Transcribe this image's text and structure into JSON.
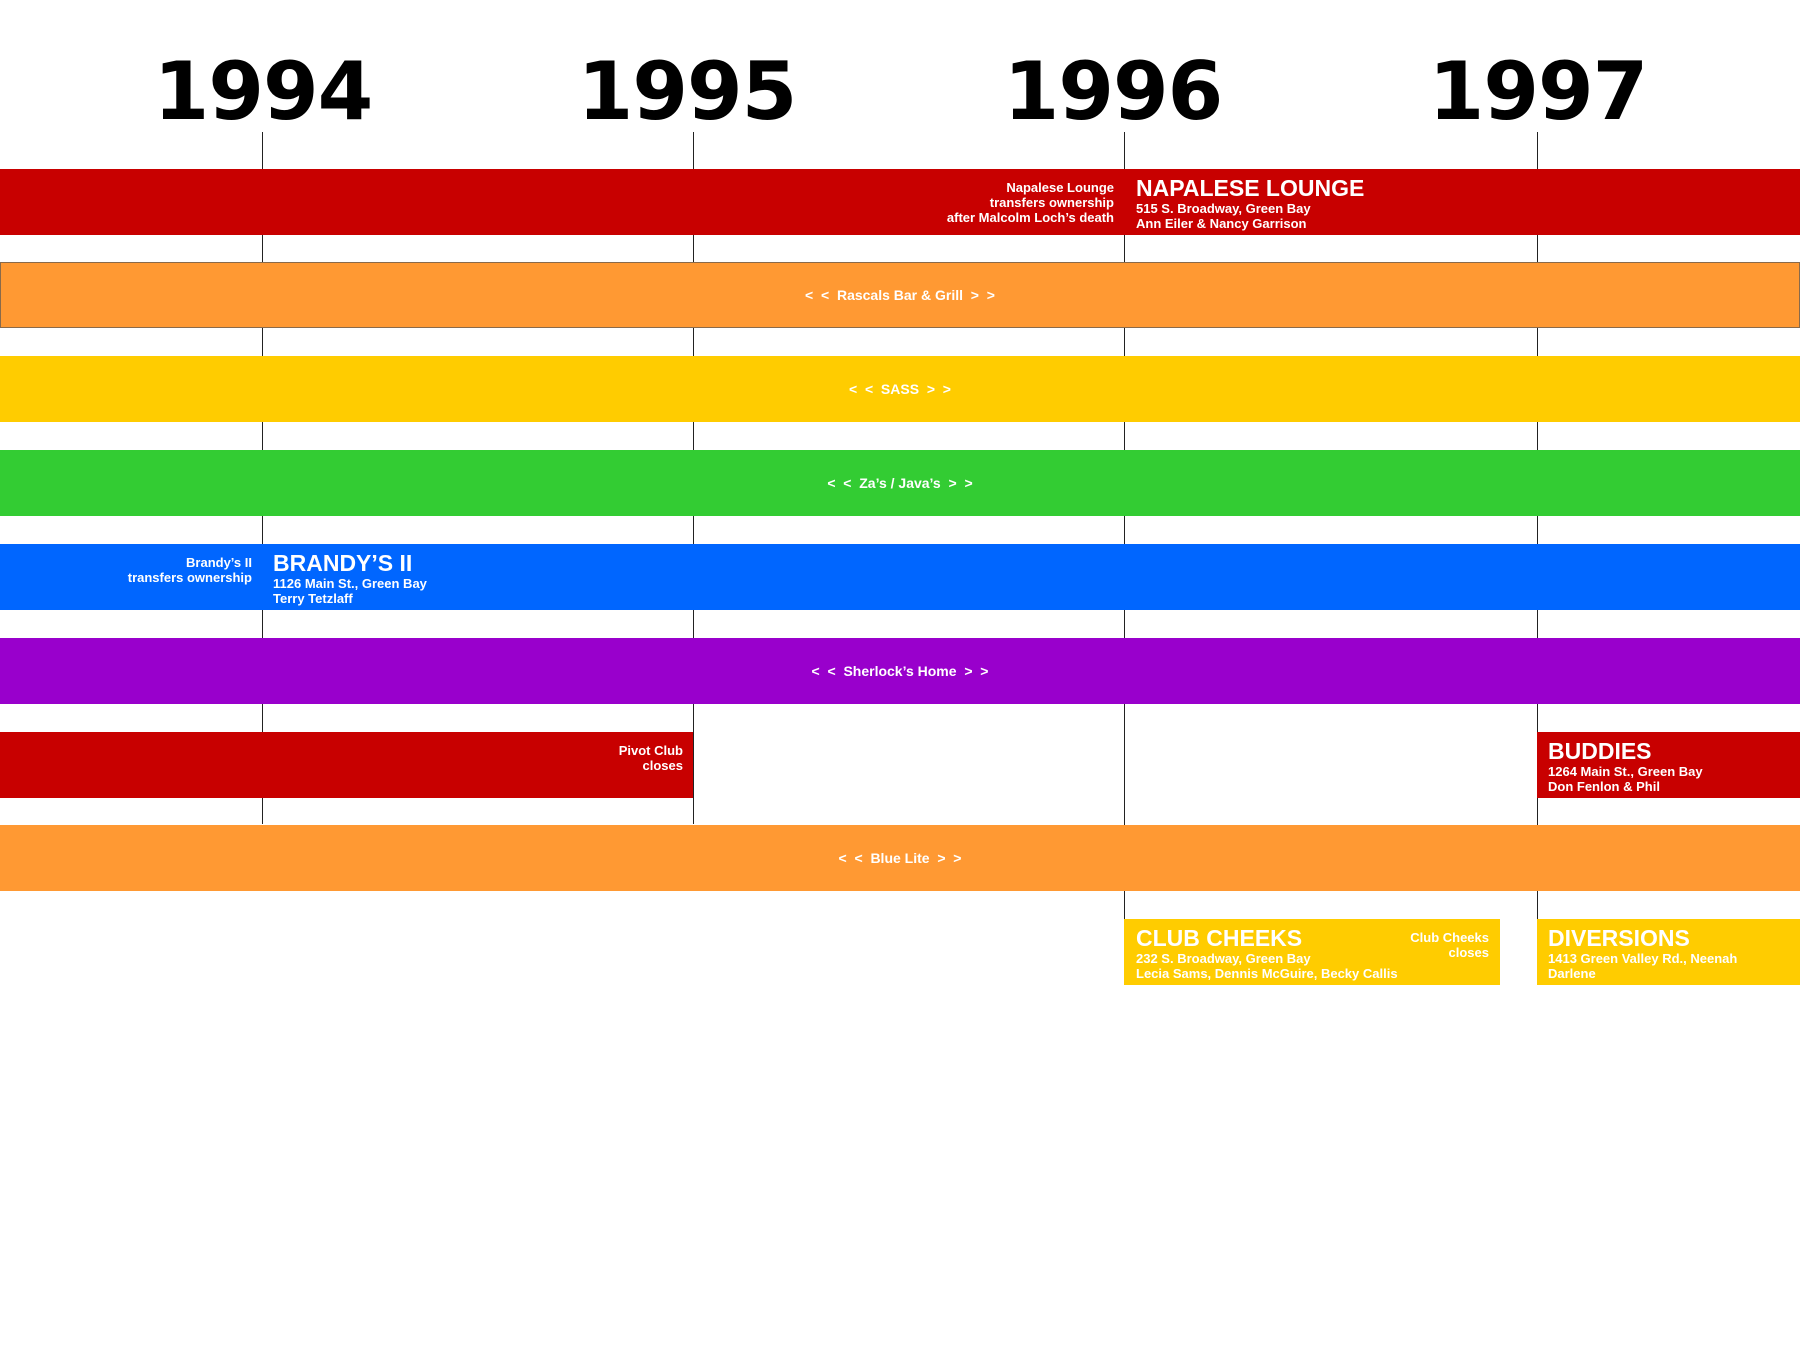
{
  "years": [
    "1994",
    "1995",
    "1996",
    "1997"
  ],
  "colors": {
    "red": "#c80000",
    "orange": "#ff9933",
    "yellow": "#ffcc00",
    "green": "#33cc33",
    "blue": "#0066ff",
    "purple": "#9900cc"
  },
  "rows": {
    "napalese": {
      "note": [
        "Napalese Lounge",
        "transfers ownership",
        "after Malcolm Loch’s death"
      ],
      "name": "NAPALESE LOUNGE",
      "address": "515 S. Broadway, Green Bay",
      "owners": "Ann Eiler & Nancy Garrison"
    },
    "rascals": {
      "label": "<  <  Rascals Bar & Grill  >  >"
    },
    "sass": {
      "label": "<  <  SASS  >  >"
    },
    "zas": {
      "label": "<  <  Za’s / Java’s  >  >"
    },
    "brandys": {
      "note": [
        "Brandy’s  II",
        "transfers ownership"
      ],
      "name": "BRANDY’S   II",
      "address": "1126 Main St., Green Bay",
      "owners": "Terry Tetzlaff"
    },
    "sherlocks": {
      "label": "<  <  Sherlock’s Home  >  >"
    },
    "pivot": {
      "note": [
        "Pivot Club",
        "closes"
      ]
    },
    "buddies": {
      "name": "BUDDIES",
      "address": "1264 Main St., Green Bay",
      "owners": "Don Fenlon & Phil"
    },
    "bluelite": {
      "label": "<  <  Blue Lite  >  >"
    },
    "cheeks": {
      "name": "CLUB CHEEKS",
      "address": "232 S. Broadway, Green Bay",
      "owners": "Lecia Sams, Dennis McGuire, Becky Callis",
      "note": [
        "Club Cheeks",
        "closes"
      ]
    },
    "diversions": {
      "name": "DIVERSIONS",
      "address": "1413 Green Valley Rd., Neenah",
      "owners": "Darlene"
    }
  }
}
